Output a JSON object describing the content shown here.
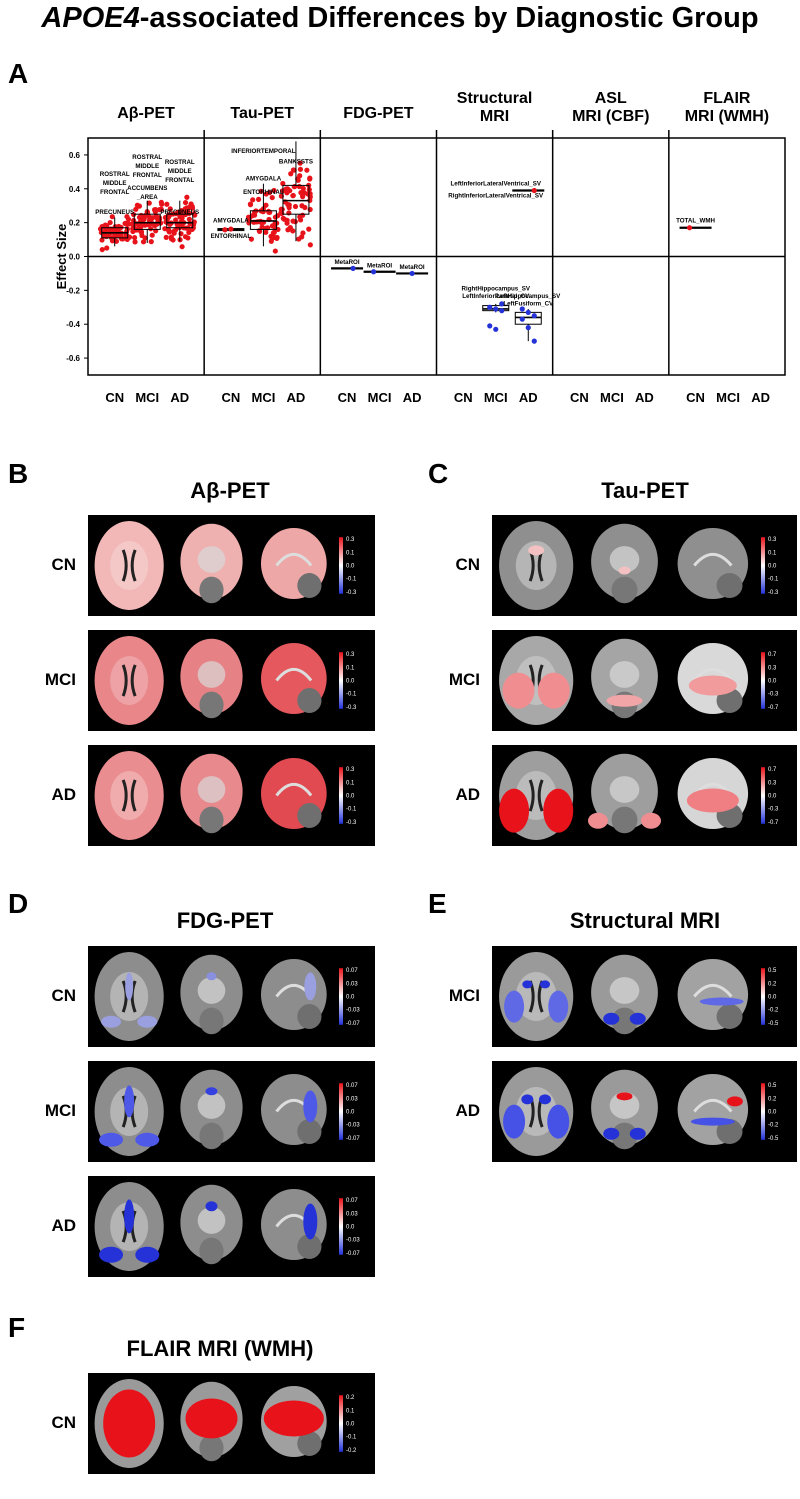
{
  "title": {
    "italic": "APOE4",
    "rest": "-associated Differences by Diagnostic Group"
  },
  "panel_letters": {
    "a": "A",
    "b": "B",
    "c": "C",
    "d": "D",
    "e": "E",
    "f": "F"
  },
  "sections": {
    "b": {
      "title": "Aβ-PET",
      "rows": [
        "CN",
        "MCI",
        "AD"
      ]
    },
    "c": {
      "title": "Tau-PET",
      "rows": [
        "CN",
        "MCI",
        "AD"
      ]
    },
    "d": {
      "title": "FDG-PET",
      "rows": [
        "CN",
        "MCI",
        "AD"
      ]
    },
    "e": {
      "title": "Structural MRI",
      "rows": [
        "MCI",
        "AD"
      ]
    },
    "f": {
      "title": "FLAIR MRI (WMH)",
      "rows": [
        "CN"
      ]
    }
  },
  "colorbar_scales": {
    "b": [
      "0.3",
      "0.1",
      "0.0",
      "-0.1",
      "-0.3"
    ],
    "c_cn": [
      "0.3",
      "0.1",
      "0.0",
      "-0.1",
      "-0.3"
    ],
    "c": [
      "0.7",
      "0.3",
      "0.0",
      "-0.3",
      "-0.7"
    ],
    "d": [
      "0.07",
      "0.03",
      "0.0",
      "-0.03",
      "-0.07"
    ],
    "e": [
      "0.5",
      "0.2",
      "0.0",
      "-0.2",
      "-0.5"
    ],
    "f": [
      "0.2",
      "0.1",
      "0.0",
      "-0.1",
      "-0.2"
    ]
  },
  "colors": {
    "positive": "#e8131a",
    "negative": "#2432d8",
    "brain": "#8e8e8e",
    "background": "#000000"
  },
  "chart_data": {
    "type": "scatter",
    "ylabel": "Effect Size",
    "ylim": [
      -0.7,
      0.7
    ],
    "yticks": [
      "0.6",
      "0.4",
      "0.2",
      "0.0",
      "-0.2",
      "-0.4",
      "-0.6"
    ],
    "groups": [
      "CN",
      "MCI",
      "AD"
    ],
    "modalities": [
      {
        "name": "Aβ-PET",
        "label_lines": [
          "Aβ-PET"
        ]
      },
      {
        "name": "Tau-PET",
        "label_lines": [
          "Tau-PET"
        ]
      },
      {
        "name": "FDG-PET",
        "label_lines": [
          "FDG-PET"
        ]
      },
      {
        "name": "Structural MRI",
        "label_lines": [
          "Structural",
          "MRI"
        ]
      },
      {
        "name": "ASL MRI (CBF)",
        "label_lines": [
          "ASL",
          "MRI (CBF)"
        ]
      },
      {
        "name": "FLAIR MRI (WMH)",
        "label_lines": [
          "FLAIR",
          "MRI (WMH)"
        ]
      }
    ],
    "boxes": [
      {
        "modality": 0,
        "group": 0,
        "q1": 0.11,
        "median": 0.14,
        "q3": 0.17,
        "whisker_low": 0.06,
        "whisker_high": 0.23
      },
      {
        "modality": 0,
        "group": 1,
        "q1": 0.16,
        "median": 0.2,
        "q3": 0.25,
        "whisker_low": 0.08,
        "whisker_high": 0.33
      },
      {
        "modality": 0,
        "group": 2,
        "q1": 0.17,
        "median": 0.2,
        "q3": 0.25,
        "whisker_low": 0.09,
        "whisker_high": 0.33
      },
      {
        "modality": 1,
        "group": 0,
        "q1": 0.155,
        "median": 0.16,
        "q3": 0.165,
        "whisker_low": 0.15,
        "whisker_high": 0.17
      },
      {
        "modality": 1,
        "group": 1,
        "q1": 0.16,
        "median": 0.21,
        "q3": 0.27,
        "whisker_low": 0.06,
        "whisker_high": 0.43
      },
      {
        "modality": 1,
        "group": 2,
        "q1": 0.25,
        "median": 0.33,
        "q3": 0.42,
        "whisker_low": 0.09,
        "whisker_high": 0.68
      },
      {
        "modality": 3,
        "group": 1,
        "q1": -0.32,
        "median": -0.31,
        "q3": -0.29,
        "whisker_low": -0.33,
        "whisker_high": -0.28
      },
      {
        "modality": 3,
        "group": 2,
        "q1": -0.4,
        "median": -0.36,
        "q3": -0.33,
        "whisker_low": -0.5,
        "whisker_high": -0.31
      }
    ],
    "point_clouds": [
      {
        "modality": 0,
        "group": 0,
        "color": "#e8131a",
        "n": 60,
        "mean": 0.14,
        "sd": 0.035
      },
      {
        "modality": 0,
        "group": 1,
        "color": "#e8131a",
        "n": 70,
        "mean": 0.2,
        "sd": 0.055
      },
      {
        "modality": 0,
        "group": 2,
        "color": "#e8131a",
        "n": 70,
        "mean": 0.21,
        "sd": 0.05
      },
      {
        "modality": 1,
        "group": 1,
        "color": "#e8131a",
        "n": 55,
        "mean": 0.21,
        "sd": 0.08
      },
      {
        "modality": 1,
        "group": 2,
        "color": "#e8131a",
        "n": 65,
        "mean": 0.33,
        "sd": 0.11
      }
    ],
    "points": [
      {
        "modality": 1,
        "group": 0,
        "y": 0.158,
        "color": "#e8131a"
      },
      {
        "modality": 1,
        "group": 0,
        "y": 0.162,
        "color": "#e8131a"
      },
      {
        "modality": 2,
        "group": 0,
        "y": -0.07,
        "color": "#2432d8"
      },
      {
        "modality": 2,
        "group": 1,
        "y": -0.09,
        "color": "#2432d8"
      },
      {
        "modality": 2,
        "group": 2,
        "y": -0.1,
        "color": "#2432d8"
      },
      {
        "modality": 3,
        "group": 1,
        "y": -0.28,
        "color": "#2432d8"
      },
      {
        "modality": 3,
        "group": 1,
        "y": -0.3,
        "color": "#2432d8"
      },
      {
        "modality": 3,
        "group": 1,
        "y": -0.31,
        "color": "#2432d8"
      },
      {
        "modality": 3,
        "group": 1,
        "y": -0.32,
        "color": "#2432d8"
      },
      {
        "modality": 3,
        "group": 1,
        "y": -0.41,
        "color": "#2432d8"
      },
      {
        "modality": 3,
        "group": 1,
        "y": -0.43,
        "color": "#2432d8"
      },
      {
        "modality": 3,
        "group": 2,
        "y": 0.39,
        "color": "#e8131a"
      },
      {
        "modality": 3,
        "group": 2,
        "y": -0.31,
        "color": "#2432d8"
      },
      {
        "modality": 3,
        "group": 2,
        "y": -0.33,
        "color": "#2432d8"
      },
      {
        "modality": 3,
        "group": 2,
        "y": -0.35,
        "color": "#2432d8"
      },
      {
        "modality": 3,
        "group": 2,
        "y": -0.37,
        "color": "#2432d8"
      },
      {
        "modality": 3,
        "group": 2,
        "y": -0.42,
        "color": "#2432d8"
      },
      {
        "modality": 3,
        "group": 2,
        "y": -0.5,
        "color": "#2432d8"
      },
      {
        "modality": 5,
        "group": 0,
        "y": 0.17,
        "color": "#e8131a"
      }
    ],
    "flat_lines": [
      {
        "modality": 2,
        "group": 0,
        "y": -0.07
      },
      {
        "modality": 2,
        "group": 1,
        "y": -0.09
      },
      {
        "modality": 2,
        "group": 2,
        "y": -0.1
      },
      {
        "modality": 3,
        "group": 2,
        "y": 0.39
      },
      {
        "modality": 5,
        "group": 0,
        "y": 0.17
      }
    ],
    "annotations": [
      {
        "modality": 0,
        "group": 0,
        "y": 0.37,
        "lines": [
          "ROSTRAL",
          "MIDDLE",
          "FRONTAL"
        ]
      },
      {
        "modality": 0,
        "group": 0,
        "y": 0.25,
        "lines": [
          "PRECUNEUS"
        ]
      },
      {
        "modality": 0,
        "group": 1,
        "y": 0.47,
        "lines": [
          "ROSTRAL",
          "MIDDLE",
          "FRONTAL"
        ]
      },
      {
        "modality": 0,
        "group": 1,
        "y": 0.34,
        "lines": [
          "ACCUMBENS",
          "_AREA"
        ]
      },
      {
        "modality": 0,
        "group": 2,
        "y": 0.44,
        "lines": [
          "ROSTRAL",
          "MIDDLE",
          "FRONTAL"
        ]
      },
      {
        "modality": 0,
        "group": 2,
        "y": 0.25,
        "lines": [
          "PRECUNEUS"
        ]
      },
      {
        "modality": 1,
        "group": 0,
        "y": 0.2,
        "lines": [
          "AMYGDALA"
        ]
      },
      {
        "modality": 1,
        "group": 0,
        "y": 0.11,
        "lines": [
          "ENTORHINAL"
        ]
      },
      {
        "modality": 1,
        "group": 1,
        "y": 0.45,
        "lines": [
          "AMYGDALA"
        ]
      },
      {
        "modality": 1,
        "group": 1,
        "y": 0.37,
        "lines": [
          "ENTORHINAL"
        ]
      },
      {
        "modality": 1,
        "group": 1,
        "y": 0.61,
        "lines": [
          "INFERIORTEMPORAL"
        ]
      },
      {
        "modality": 1,
        "group": 2,
        "y": 0.55,
        "lines": [
          "BANKSSTS"
        ]
      },
      {
        "modality": 2,
        "group": 0,
        "y": -0.045,
        "lines": [
          "MetaROI"
        ]
      },
      {
        "modality": 2,
        "group": 1,
        "y": -0.065,
        "lines": [
          "MetaROI"
        ]
      },
      {
        "modality": 2,
        "group": 2,
        "y": -0.075,
        "lines": [
          "MetaROI"
        ]
      },
      {
        "modality": 3,
        "group": 1,
        "y": 0.42,
        "lines": [
          "LeftInferiorLateralVentrical_SV"
        ]
      },
      {
        "modality": 3,
        "group": 1,
        "y": 0.35,
        "lines": [
          "RightInferiorLateralVentrical_SV"
        ]
      },
      {
        "modality": 3,
        "group": 1,
        "y": -0.2,
        "lines": [
          "RightHippocampus_SV"
        ]
      },
      {
        "modality": 3,
        "group": 1,
        "y": -0.245,
        "lines": [
          "LeftInferiorParietal_CV"
        ]
      },
      {
        "modality": 3,
        "group": 2,
        "y": -0.245,
        "lines": [
          "LeftHippocampus_SV"
        ]
      },
      {
        "modality": 3,
        "group": 2,
        "y": -0.29,
        "lines": [
          "LeftFusiform_CV"
        ]
      },
      {
        "modality": 5,
        "group": 0,
        "y": 0.2,
        "lines": [
          "TOTAL_WMH"
        ]
      }
    ]
  }
}
